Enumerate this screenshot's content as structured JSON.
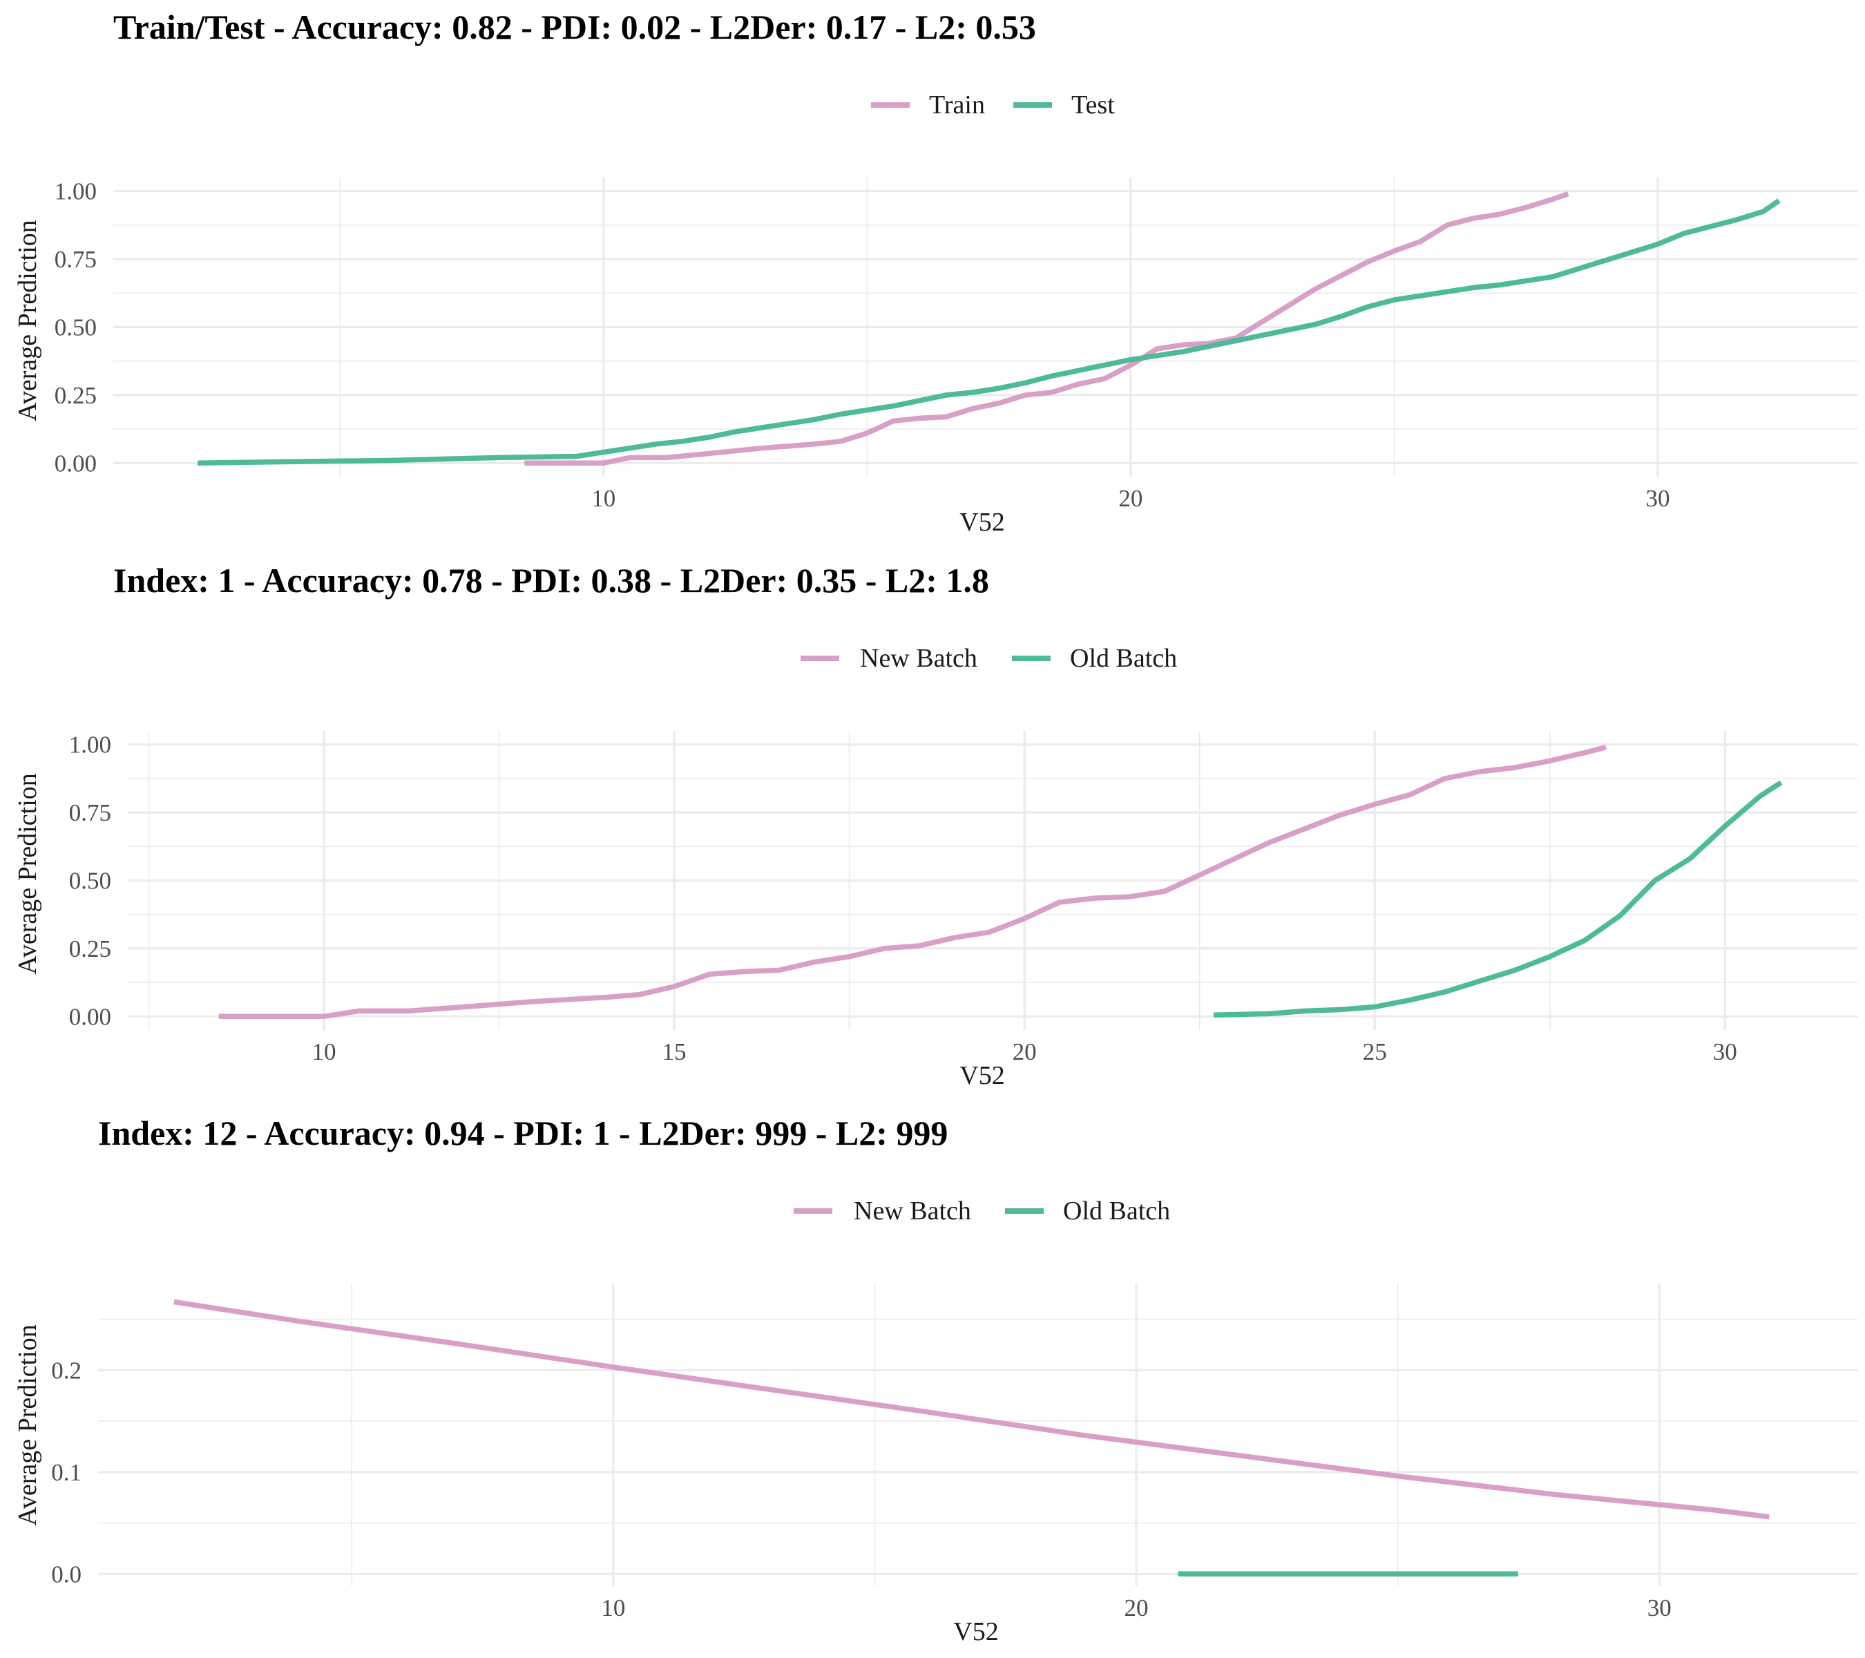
{
  "colors": {
    "pink": "#D8A0C6",
    "green": "#4FBA97"
  },
  "chart_data": [
    {
      "type": "line",
      "title": "Train/Test - Accuracy: 0.82 - PDI: 0.02 - L2Der: 0.17 - L2: 0.53",
      "xlabel": "V52",
      "ylabel": "Average Prediction",
      "xlim": [
        0.7,
        33.8
      ],
      "ylim": [
        -0.05,
        1.05
      ],
      "xticks": [
        10,
        20,
        30
      ],
      "xtick_labels": [
        "10",
        "20",
        "30"
      ],
      "xminor": [
        5,
        15,
        25
      ],
      "yticks": [
        0,
        0.25,
        0.5,
        0.75,
        1.0
      ],
      "ytick_labels": [
        "0.00",
        "0.25",
        "0.50",
        "0.75",
        "1.00"
      ],
      "yminor": [
        0.125,
        0.375,
        0.625,
        0.875
      ],
      "grid": true,
      "legend_position": "top",
      "series": [
        {
          "name": "Train",
          "color": "#D8A0C6",
          "x": [
            8.5,
            10.0,
            10.5,
            11.2,
            12.0,
            13.0,
            14.0,
            14.5,
            15.0,
            15.5,
            16.0,
            16.5,
            17.0,
            17.5,
            18.0,
            18.5,
            19.0,
            19.5,
            20.0,
            20.5,
            21.0,
            21.5,
            22.0,
            22.5,
            23.0,
            23.5,
            24.0,
            24.5,
            25.0,
            25.5,
            26.0,
            26.5,
            27.0,
            27.5,
            28.0,
            28.3
          ],
          "y": [
            0.0,
            0.0,
            0.02,
            0.02,
            0.035,
            0.055,
            0.07,
            0.08,
            0.11,
            0.155,
            0.165,
            0.17,
            0.2,
            0.22,
            0.25,
            0.26,
            0.29,
            0.31,
            0.36,
            0.42,
            0.435,
            0.44,
            0.46,
            0.52,
            0.58,
            0.64,
            0.69,
            0.74,
            0.78,
            0.815,
            0.875,
            0.9,
            0.915,
            0.94,
            0.97,
            0.99
          ]
        },
        {
          "name": "Test",
          "color": "#4FBA97",
          "x": [
            2.3,
            4.0,
            6.0,
            8.0,
            9.5,
            10.0,
            10.5,
            11.0,
            11.5,
            12.0,
            12.5,
            13.0,
            13.5,
            14.0,
            14.5,
            15.0,
            15.5,
            16.0,
            16.5,
            17.0,
            17.5,
            18.0,
            18.5,
            19.0,
            19.5,
            20.0,
            20.5,
            21.0,
            21.5,
            22.0,
            22.5,
            23.0,
            23.5,
            24.0,
            24.5,
            25.0,
            25.5,
            26.0,
            26.5,
            27.0,
            27.5,
            28.0,
            28.5,
            29.0,
            29.5,
            30.0,
            30.5,
            31.0,
            31.5,
            32.0,
            32.3
          ],
          "y": [
            0.0,
            0.005,
            0.01,
            0.02,
            0.025,
            0.04,
            0.055,
            0.07,
            0.08,
            0.095,
            0.115,
            0.13,
            0.145,
            0.16,
            0.18,
            0.195,
            0.21,
            0.23,
            0.25,
            0.26,
            0.275,
            0.295,
            0.32,
            0.34,
            0.36,
            0.38,
            0.395,
            0.41,
            0.43,
            0.45,
            0.47,
            0.49,
            0.51,
            0.54,
            0.575,
            0.6,
            0.615,
            0.63,
            0.645,
            0.655,
            0.67,
            0.685,
            0.715,
            0.745,
            0.775,
            0.805,
            0.845,
            0.87,
            0.895,
            0.925,
            0.965
          ]
        }
      ]
    },
    {
      "type": "line",
      "title": "Index: 1 - Accuracy: 0.78 - PDI: 0.38 - L2Der: 0.35 - L2: 1.8",
      "xlabel": "V52",
      "ylabel": "Average Prediction",
      "xlim": [
        7.2,
        31.9
      ],
      "ylim": [
        -0.05,
        1.05
      ],
      "xticks": [
        10,
        15,
        20,
        25,
        30
      ],
      "xtick_labels": [
        "10",
        "15",
        "20",
        "25",
        "30"
      ],
      "xminor": [
        7.5,
        12.5,
        17.5,
        22.5,
        27.5
      ],
      "yticks": [
        0,
        0.25,
        0.5,
        0.75,
        1.0
      ],
      "ytick_labels": [
        "0.00",
        "0.25",
        "0.50",
        "0.75",
        "1.00"
      ],
      "yminor": [
        0.125,
        0.375,
        0.625,
        0.875
      ],
      "grid": true,
      "legend_position": "top",
      "series": [
        {
          "name": "New Batch",
          "color": "#D8A0C6",
          "x": [
            8.5,
            10.0,
            10.5,
            11.2,
            12.0,
            13.0,
            14.0,
            14.5,
            15.0,
            15.5,
            16.0,
            16.5,
            17.0,
            17.5,
            18.0,
            18.5,
            19.0,
            19.5,
            20.0,
            20.5,
            21.0,
            21.5,
            22.0,
            22.5,
            23.0,
            23.5,
            24.0,
            24.5,
            25.0,
            25.5,
            26.0,
            26.5,
            27.0,
            27.5,
            28.0,
            28.3
          ],
          "y": [
            0.0,
            0.0,
            0.02,
            0.02,
            0.035,
            0.055,
            0.07,
            0.08,
            0.11,
            0.155,
            0.165,
            0.17,
            0.2,
            0.22,
            0.25,
            0.26,
            0.29,
            0.31,
            0.36,
            0.42,
            0.435,
            0.44,
            0.46,
            0.52,
            0.58,
            0.64,
            0.69,
            0.74,
            0.78,
            0.815,
            0.875,
            0.9,
            0.915,
            0.94,
            0.97,
            0.99
          ]
        },
        {
          "name": "Old Batch",
          "color": "#4FBA97",
          "x": [
            22.7,
            23.5,
            24.0,
            24.5,
            25.0,
            25.5,
            26.0,
            26.5,
            27.0,
            27.5,
            28.0,
            28.5,
            29.0,
            29.5,
            30.0,
            30.5,
            30.8
          ],
          "y": [
            0.005,
            0.01,
            0.02,
            0.025,
            0.035,
            0.06,
            0.09,
            0.13,
            0.17,
            0.22,
            0.28,
            0.37,
            0.5,
            0.58,
            0.7,
            0.81,
            0.86
          ]
        }
      ]
    },
    {
      "type": "line",
      "title": "Index: 12 - Accuracy: 0.94 - PDI: 1 - L2Der: 999 - L2: 999",
      "xlabel": "V52",
      "ylabel": "Average Prediction",
      "xlim": [
        0.15,
        33.8
      ],
      "ylim": [
        -0.012,
        0.285
      ],
      "xticks": [
        10,
        20,
        30
      ],
      "xtick_labels": [
        "10",
        "20",
        "30"
      ],
      "xminor": [
        5,
        15,
        25
      ],
      "yticks": [
        0,
        0.1,
        0.2
      ],
      "ytick_labels": [
        "0.0",
        "0.1",
        "0.2"
      ],
      "yminor": [
        0.05,
        0.15,
        0.25
      ],
      "grid": true,
      "legend_position": "top",
      "series": [
        {
          "name": "New Batch",
          "color": "#D8A0C6",
          "x": [
            1.6,
            4.0,
            7.0,
            10.0,
            13.0,
            16.0,
            19.0,
            22.0,
            25.0,
            28.0,
            31.0,
            32.1
          ],
          "y": [
            0.267,
            0.248,
            0.226,
            0.203,
            0.181,
            0.159,
            0.136,
            0.116,
            0.096,
            0.078,
            0.063,
            0.056
          ]
        },
        {
          "name": "Old Batch",
          "color": "#4FBA97",
          "x": [
            20.8,
            27.3
          ],
          "y": [
            0.0,
            0.0
          ]
        }
      ]
    }
  ]
}
